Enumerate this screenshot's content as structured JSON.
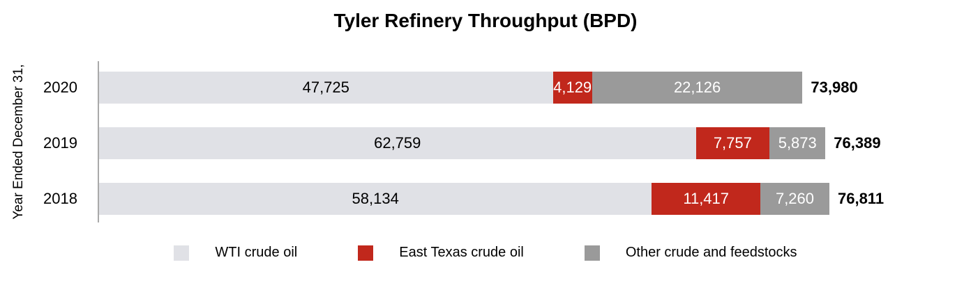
{
  "title": "Tyler Refinery Throughput (BPD)",
  "y_axis_label": "Year Ended December 31,",
  "colors": {
    "wti_crude_oil": "#e0e1e6",
    "east_texas_crude_oil": "#c1281c",
    "other_crude_and_feedstocks": "#9a9a9a",
    "axis_line": "#a9a9a9",
    "label_on_light": "#000000",
    "label_on_dark": "#ffffff",
    "total_text": "#000000"
  },
  "chart_data": {
    "type": "bar",
    "orientation": "horizontal",
    "stacked": true,
    "grid": false,
    "legend_position": "bottom",
    "title": "Tyler Refinery Throughput (BPD)",
    "ylabel": "Year Ended December 31,",
    "xlabel": "",
    "xmax": 76811,
    "categories": [
      "2020",
      "2019",
      "2018"
    ],
    "series": [
      {
        "name": "WTI crude oil",
        "color": "#e0e1e6",
        "label_color": "#000000",
        "values": [
          47725,
          62759,
          58134
        ],
        "labels": [
          "47,725",
          "62,759",
          "58,134"
        ]
      },
      {
        "name": "East Texas crude oil",
        "color": "#c1281c",
        "label_color": "#ffffff",
        "values": [
          4129,
          7757,
          11417
        ],
        "labels": [
          "4,129",
          "7,757",
          "11,417"
        ]
      },
      {
        "name": "Other crude and feedstocks",
        "color": "#9a9a9a",
        "label_color": "#ffffff",
        "values": [
          22126,
          5873,
          7260
        ],
        "labels": [
          "22,126",
          "5,873",
          "7,260"
        ]
      }
    ],
    "totals": [
      73980,
      76389,
      76811
    ],
    "total_labels": [
      "73,980",
      "76,389",
      "76,811"
    ]
  },
  "legend": {
    "items": [
      {
        "label": "WTI crude oil",
        "color": "#e0e1e6"
      },
      {
        "label": "East Texas crude oil",
        "color": "#c1281c"
      },
      {
        "label": "Other crude and feedstocks",
        "color": "#9a9a9a"
      }
    ]
  }
}
